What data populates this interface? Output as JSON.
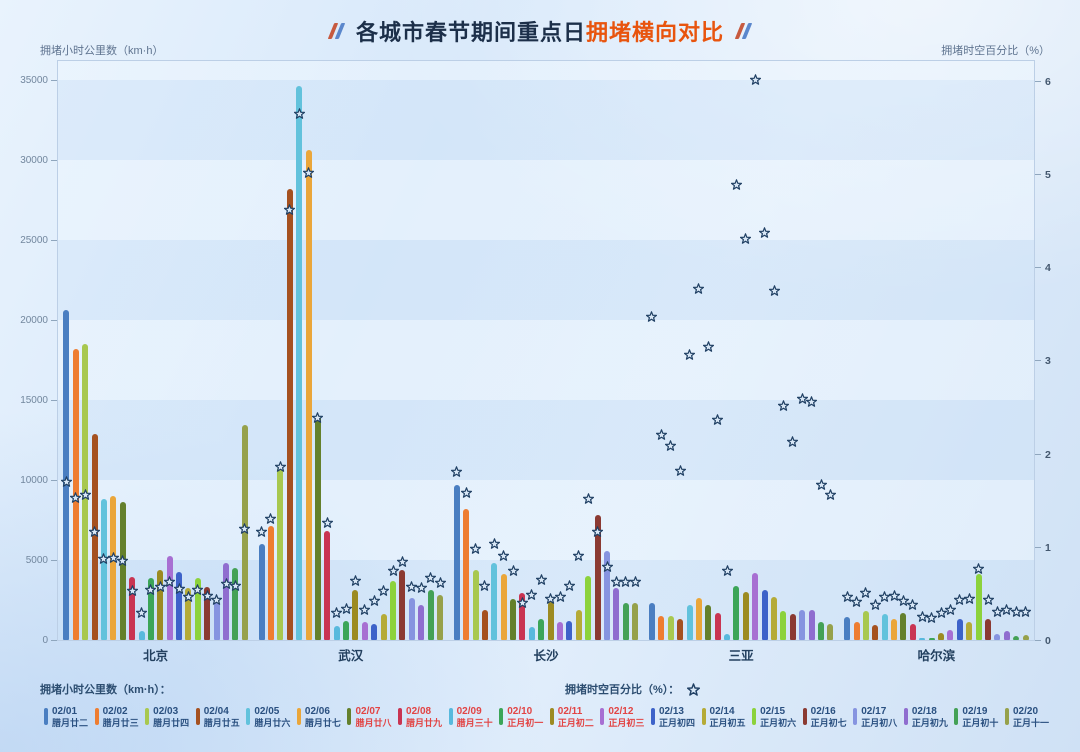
{
  "title": {
    "left_part": "各城市春节期间重点日",
    "highlight": "拥堵横向对比"
  },
  "legend": {
    "bars_label": "拥堵小时公里数（km·h）：",
    "stars_label": "拥堵时空百分比（%）："
  },
  "colors": {
    "title_highlight": "#e8540e",
    "holiday_text": "#e24444",
    "normal_text": "#2a5080",
    "star_fill": "#d8e7f6",
    "star_stroke": "#1f3f63"
  },
  "chart_data": {
    "type": "grouped-bar+scatter",
    "categories": [
      "北京",
      "武汉",
      "长沙",
      "三亚",
      "哈尔滨"
    ],
    "left_axis": {
      "label": "拥堵小时公里数（km·h）",
      "ticks": [
        "0",
        "5000",
        "10000",
        "15000",
        "20000",
        "25000",
        "30000",
        "35000"
      ],
      "tick_step": 5000
    },
    "right_axis": {
      "label": "拥堵时空百分比（%）",
      "ticks": [
        "0",
        "1",
        "2",
        "3",
        "4",
        "5",
        "6"
      ],
      "tick_step": 1
    },
    "legend_position": "bottom",
    "grid": false,
    "series": [
      {
        "date": "02/01",
        "lunar": "腊月廿二",
        "color": "#4a7ec1",
        "holiday": false,
        "bars": [
          20600,
          6000,
          9700,
          2300,
          1450
        ],
        "stars": [
          1.7,
          1.16,
          1.81,
          3.47,
          0.47
        ]
      },
      {
        "date": "02/02",
        "lunar": "腊月廿三",
        "color": "#ee7d31",
        "holiday": false,
        "bars": [
          18200,
          7100,
          8200,
          1500,
          1150
        ],
        "stars": [
          1.53,
          1.3,
          1.58,
          2.21,
          0.41
        ]
      },
      {
        "date": "02/03",
        "lunar": "腊月廿四",
        "color": "#a8c84f",
        "holiday": false,
        "bars": [
          18500,
          10800,
          4400,
          1500,
          1800
        ],
        "stars": [
          1.56,
          1.86,
          0.98,
          2.09,
          0.51
        ]
      },
      {
        "date": "02/04",
        "lunar": "腊月廿五",
        "color": "#a55120",
        "holiday": false,
        "bars": [
          12900,
          28200,
          1900,
          1300,
          950
        ],
        "stars": [
          1.16,
          4.62,
          0.59,
          1.82,
          0.38
        ]
      },
      {
        "date": "02/05",
        "lunar": "腊月廿六",
        "color": "#62c2dc",
        "holiday": false,
        "bars": [
          8800,
          34600,
          4800,
          2200,
          1600
        ],
        "stars": [
          0.88,
          5.65,
          1.04,
          3.06,
          0.47
        ]
      },
      {
        "date": "02/06",
        "lunar": "腊月廿七",
        "color": "#eaa63a",
        "holiday": false,
        "bars": [
          9000,
          30600,
          4150,
          2600,
          1300
        ],
        "stars": [
          0.89,
          5.02,
          0.91,
          3.77,
          0.48
        ]
      },
      {
        "date": "02/07",
        "lunar": "腊月廿八",
        "color": "#64802c",
        "holiday": true,
        "bars": [
          8650,
          14000,
          2550,
          2200,
          1700
        ],
        "stars": [
          0.85,
          2.39,
          0.75,
          3.15,
          0.42
        ]
      },
      {
        "date": "02/08",
        "lunar": "腊月廿九",
        "color": "#c93452",
        "holiday": true,
        "bars": [
          3950,
          6800,
          2950,
          1700,
          1000
        ],
        "stars": [
          0.53,
          1.26,
          0.4,
          2.37,
          0.38
        ]
      },
      {
        "date": "02/09",
        "lunar": "腊月三十",
        "color": "#58b9dd",
        "holiday": true,
        "bars": [
          550,
          850,
          800,
          400,
          100
        ],
        "stars": [
          0.3,
          0.3,
          0.49,
          0.75,
          0.25
        ]
      },
      {
        "date": "02/10",
        "lunar": "正月初一",
        "color": "#3ca558",
        "holiday": true,
        "bars": [
          3850,
          1200,
          1300,
          3400,
          120
        ],
        "stars": [
          0.54,
          0.34,
          0.65,
          4.89,
          0.24
        ]
      },
      {
        "date": "02/11",
        "lunar": "正月初二",
        "color": "#9c8b22",
        "holiday": true,
        "bars": [
          4400,
          3100,
          2400,
          3000,
          420
        ],
        "stars": [
          0.57,
          0.64,
          0.45,
          4.31,
          0.3
        ]
      },
      {
        "date": "02/12",
        "lunar": "正月初三",
        "color": "#a76fd2",
        "holiday": true,
        "bars": [
          5250,
          1150,
          1150,
          4200,
          620
        ],
        "stars": [
          0.63,
          0.33,
          0.47,
          6.02,
          0.33
        ]
      },
      {
        "date": "02/13",
        "lunar": "正月初四",
        "color": "#3d62c9",
        "holiday": false,
        "bars": [
          4250,
          1000,
          1200,
          3100,
          1300
        ],
        "stars": [
          0.55,
          0.42,
          0.59,
          4.37,
          0.43
        ]
      },
      {
        "date": "02/14",
        "lunar": "正月初五",
        "color": "#b5ab37",
        "holiday": false,
        "bars": [
          3250,
          1650,
          1850,
          2700,
          1100
        ],
        "stars": [
          0.47,
          0.53,
          0.91,
          3.75,
          0.45
        ]
      },
      {
        "date": "02/15",
        "lunar": "正月初六",
        "color": "#8cd23c",
        "holiday": false,
        "bars": [
          3850,
          3700,
          4000,
          1800,
          4100
        ],
        "stars": [
          0.54,
          0.75,
          1.52,
          2.52,
          0.77
        ]
      },
      {
        "date": "02/16",
        "lunar": "正月初七",
        "color": "#8b3a32",
        "holiday": false,
        "bars": [
          3300,
          4350,
          7800,
          1600,
          1300
        ],
        "stars": [
          0.48,
          0.84,
          1.16,
          2.13,
          0.43
        ]
      },
      {
        "date": "02/17",
        "lunar": "正月初八",
        "color": "#8694e0",
        "holiday": false,
        "bars": [
          2400,
          2600,
          5550,
          1900,
          350
        ],
        "stars": [
          0.43,
          0.57,
          0.79,
          2.59,
          0.31
        ]
      },
      {
        "date": "02/18",
        "lunar": "正月初九",
        "color": "#8f6dcf",
        "holiday": false,
        "bars": [
          4800,
          2200,
          3250,
          1900,
          560
        ],
        "stars": [
          0.61,
          0.56,
          0.63,
          2.56,
          0.33
        ]
      },
      {
        "date": "02/19",
        "lunar": "正月初十",
        "color": "#44a156",
        "holiday": false,
        "bars": [
          4500,
          3150,
          2300,
          1100,
          230
        ],
        "stars": [
          0.59,
          0.67,
          0.63,
          1.67,
          0.31
        ]
      },
      {
        "date": "02/20",
        "lunar": "正月十一",
        "color": "#96a14b",
        "holiday": false,
        "bars": [
          13450,
          2800,
          2300,
          1000,
          310
        ],
        "stars": [
          1.2,
          0.62,
          0.63,
          1.56,
          0.31
        ]
      }
    ]
  }
}
